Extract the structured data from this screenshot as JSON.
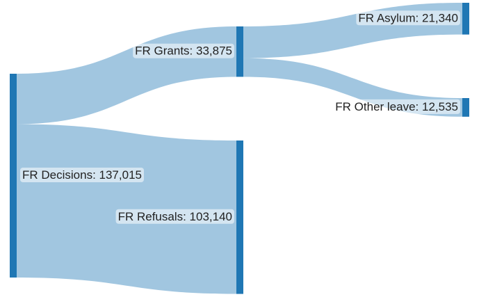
{
  "chart_data": {
    "type": "sankey",
    "color": "#1f77b4",
    "nodes": [
      {
        "label": "FR Decisions: 137,015",
        "value": 137015
      },
      {
        "label": "FR Grants: 33,875",
        "value": 33875
      },
      {
        "label": "FR Refusals: 103,140",
        "value": 103140
      },
      {
        "label": "FR Asylum: 21,340",
        "value": 21340
      },
      {
        "label": "FR Other leave: 12,535",
        "value": 12535
      }
    ],
    "links": [
      {
        "source": 0,
        "target": 1,
        "value": 33875
      },
      {
        "source": 0,
        "target": 2,
        "value": 103140
      },
      {
        "source": 1,
        "target": 3,
        "value": 21340
      },
      {
        "source": 1,
        "target": 4,
        "value": 12535
      }
    ]
  }
}
